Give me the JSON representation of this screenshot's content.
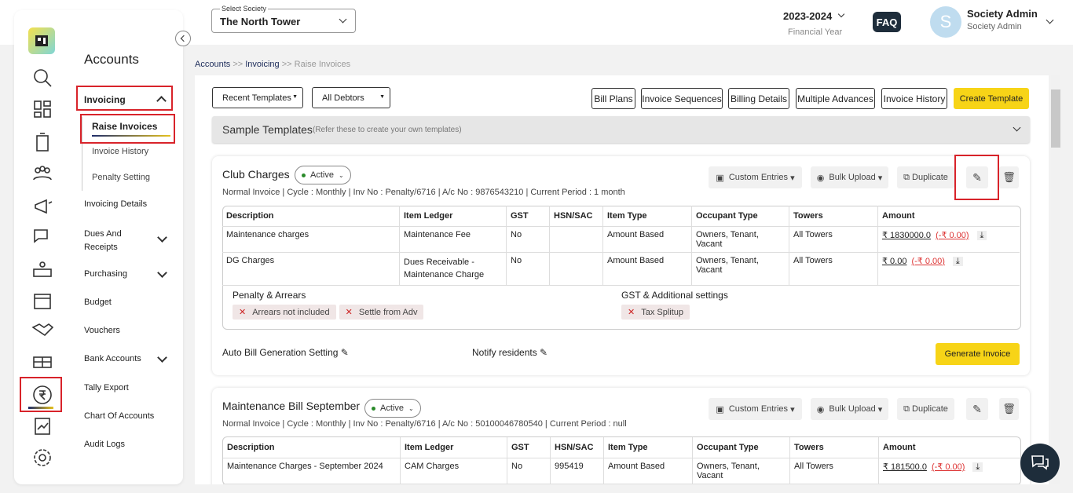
{
  "header": {
    "society_label": "Select Society",
    "society": "The North Tower",
    "year": "2023-2024",
    "year_label": "Financial Year",
    "faq": "FAQ",
    "avatar": "S",
    "user": "Society Admin",
    "role": "Society Admin"
  },
  "sidebar": {
    "title": "Accounts",
    "menu": [
      "Invoicing",
      "Raise Invoices",
      "Invoice History",
      "Penalty Setting",
      "Invoicing Details",
      "Dues And Receipts",
      "Purchasing",
      "Budget",
      "Vouchers",
      "Bank Accounts",
      "Tally Export",
      "Chart Of Accounts",
      "Audit Logs"
    ]
  },
  "breadcrumb": {
    "items": [
      "Accounts",
      "Invoicing",
      "Raise Invoices"
    ],
    "separator": ">>"
  },
  "toolbar": {
    "filters": [
      "Recent Templates",
      "All Debtors"
    ],
    "buttons": [
      "Bill Plans",
      "Invoice Sequences",
      "Billing Details",
      "Multiple Advances",
      "Invoice History"
    ],
    "create": "Create Template"
  },
  "sample": {
    "title": "Sample Templates",
    "note": "(Refer these to create your own templates)"
  },
  "columns": [
    "Description",
    "Item Ledger",
    "GST",
    "HSN/SAC",
    "Item Type",
    "Occupant Type",
    "Towers",
    "Amount"
  ],
  "actions": [
    "Custom Entries",
    "Bulk Upload",
    "Duplicate"
  ],
  "templates": [
    {
      "name": "Club Charges",
      "status": "Active",
      "meta": "Normal Invoice | Cycle : Monthly | Inv No : Penalty/6716 | A/c No : 9876543210 | Current Period : 1 month",
      "rows": [
        {
          "description": "Maintenance charges",
          "ledger": "Maintenance Fee",
          "gst": "No",
          "type": "Amount Based",
          "occupant": "Owners, Tenant, Vacant",
          "towers": "All Towers",
          "amount": "₹ 1830000.0",
          "adjustment": "(-₹ 0.00)"
        },
        {
          "description": "DG Charges",
          "ledger": "Dues Receivable - Maintenance Charge",
          "gst": "No",
          "type": "Amount Based",
          "occupant": "Owners, Tenant, Vacant",
          "towers": "All Towers",
          "amount": "₹ 0.00",
          "adjustment": "(-₹ 0.00)"
        }
      ],
      "penalty": {
        "title": "Penalty & Arrears",
        "tags": [
          "Arrears not included",
          "Settle from Adv"
        ]
      },
      "gst_settings": {
        "title": "GST & Additional settings",
        "tags": [
          "Tax Splitup"
        ]
      },
      "settings": [
        "Auto Bill Generation Setting",
        "Notify residents"
      ],
      "generate": "Generate Invoice"
    },
    {
      "name": "Maintenance Bill September",
      "status": "Active",
      "meta": "Normal Invoice | Cycle : Monthly | Inv No : Penalty/6716 | A/c No : 50100046780540 | Current Period : null",
      "rows": [
        {
          "description": "Maintenance Charges - September 2024",
          "ledger": "CAM Charges",
          "gst": "No",
          "hsn": "995419",
          "type": "Amount Based",
          "occupant": "Owners, Tenant, Vacant",
          "towers": "All Towers",
          "amount": "₹ 181500.0",
          "adjustment": "(-₹ 0.00)"
        }
      ]
    }
  ]
}
